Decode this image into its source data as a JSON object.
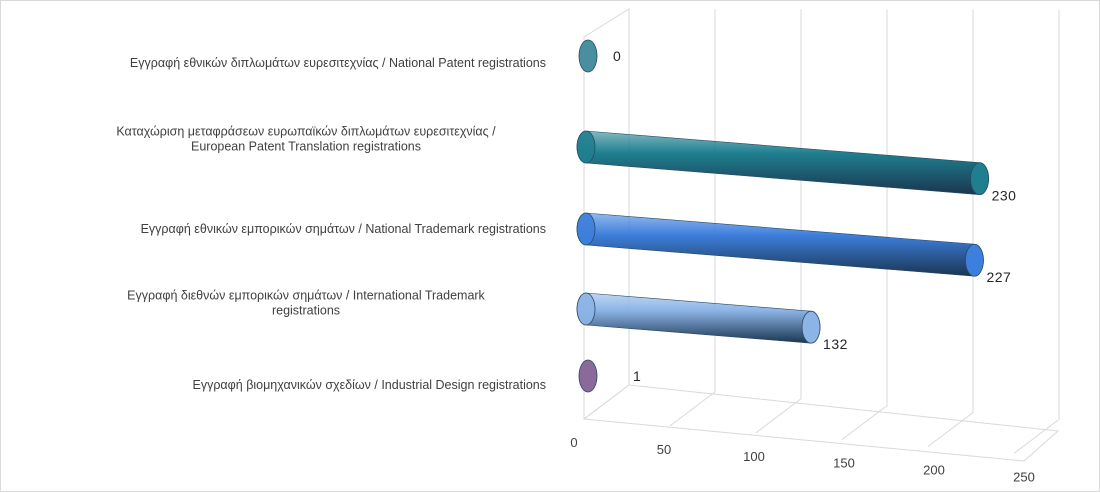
{
  "chart_data": {
    "type": "bar",
    "orientation": "horizontal",
    "style": "3d-cylinder",
    "categories": [
      [
        "Εγγραφή  εθνικών διπλωμάτων ευρεσιτεχνίας / National Patent registrations"
      ],
      [
        "Καταχώριση μεταφράσεων ευρωπαϊκών διπλωμάτων ευρεσιτεχνίας /",
        "European Patent Translation registrations"
      ],
      [
        "Εγγραφή  εθνικών εμπορικών σημάτων / National Trademark registrations"
      ],
      [
        "Εγγραφή  διεθνών εμπορικών σημάτων / International Trademark",
        "registrations"
      ],
      [
        "Εγγραφή  βιομηχανικών σχεδίων / Industrial Design registrations"
      ]
    ],
    "values": [
      0,
      230,
      227,
      132,
      1
    ],
    "data_labels": [
      "0",
      "230",
      "227",
      "132",
      "1"
    ],
    "colors": [
      "#4a8fa0",
      "#1f7f8f",
      "#3d7fdc",
      "#8cb4e6",
      "#8a6a9a"
    ],
    "xlim": [
      0,
      250
    ],
    "ticks": [
      "0",
      "50",
      "100",
      "150",
      "200",
      "250"
    ],
    "grid": true,
    "legend": "none",
    "title": "",
    "xlabel": "",
    "ylabel": ""
  }
}
